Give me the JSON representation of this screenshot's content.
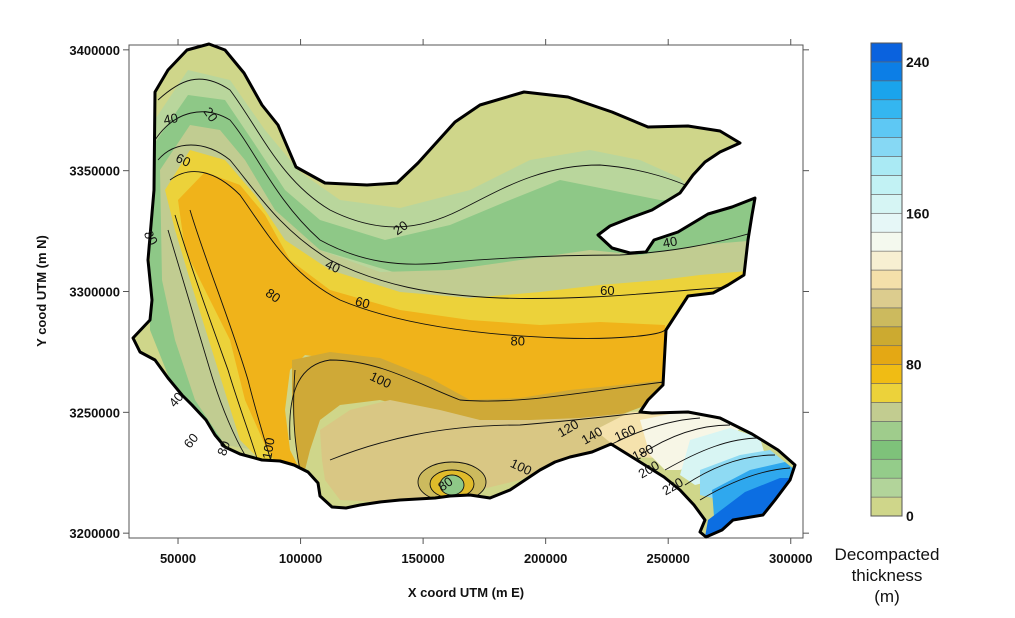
{
  "chart_data": {
    "type": "heatmap",
    "subtype": "filled-contour-map",
    "xlabel": "X coord UTM (m E)",
    "ylabel": "Y cood UTM (m N)",
    "xlim": [
      30000,
      305000
    ],
    "ylim": [
      3198000,
      3402000
    ],
    "x_ticks": [
      50000,
      100000,
      150000,
      200000,
      250000,
      300000
    ],
    "x_tick_labels": [
      "50000",
      "100000",
      "150000",
      "200000",
      "250000",
      "300000"
    ],
    "y_ticks": [
      3200000,
      3250000,
      3300000,
      3350000,
      3400000
    ],
    "y_tick_labels": [
      "3200000",
      "3250000",
      "3300000",
      "3350000",
      "3400000"
    ],
    "grid": false,
    "colorbar": {
      "title_lines": [
        "Decompacted",
        "thickness",
        "(m)"
      ],
      "min": 0,
      "max": 250,
      "step": 10,
      "tick_values": [
        0,
        80,
        160,
        240
      ],
      "tick_labels": [
        "0",
        "80",
        "160",
        "240"
      ],
      "colors": [
        "#cfd68a",
        "#b2d49a",
        "#94cc8a",
        "#7ec27a",
        "#9fcc8c",
        "#c2cc90",
        "#ecd23a",
        "#f0bc14",
        "#e4a814",
        "#ccaa30",
        "#ccba5e",
        "#dccc8e",
        "#f4e0aa",
        "#f7efd2",
        "#f4f9ee",
        "#e6f7f7",
        "#d6f5f4",
        "#c2f2f4",
        "#aaeaf4",
        "#86d8f4",
        "#5ec8f4",
        "#34b6f0",
        "#1aa4ec",
        "#0c7ee6",
        "#0a62de"
      ]
    },
    "contour_labels": [
      {
        "text": "20",
        "x": 57000,
        "y": 3373000,
        "rotate": 55
      },
      {
        "text": "40",
        "x": 44000,
        "y": 3371000,
        "rotate": -10
      },
      {
        "text": "60",
        "x": 48000,
        "y": 3354000,
        "rotate": 25
      },
      {
        "text": "80",
        "x": 37000,
        "y": 3322000,
        "rotate": 60
      },
      {
        "text": "20",
        "x": 121000,
        "y": 3326000,
        "rotate": -35
      },
      {
        "text": "40",
        "x": 98000,
        "y": 3310000,
        "rotate": 25
      },
      {
        "text": "40",
        "x": 211000,
        "y": 3320000,
        "rotate": -10
      },
      {
        "text": "60",
        "x": 108000,
        "y": 3295000,
        "rotate": 15
      },
      {
        "text": "60",
        "x": 190000,
        "y": 3300000,
        "rotate": 0
      },
      {
        "text": "80",
        "x": 78000,
        "y": 3298000,
        "rotate": 35
      },
      {
        "text": "80",
        "x": 160000,
        "y": 3279000,
        "rotate": 0
      },
      {
        "text": "100",
        "x": 114000,
        "y": 3263000,
        "rotate": 25
      },
      {
        "text": "40",
        "x": 46000,
        "y": 3255000,
        "rotate": -50
      },
      {
        "text": "60",
        "x": 51000,
        "y": 3238000,
        "rotate": -50
      },
      {
        "text": "80",
        "x": 62000,
        "y": 3235000,
        "rotate": -70
      },
      {
        "text": "100",
        "x": 77000,
        "y": 3235000,
        "rotate": -80
      },
      {
        "text": "100",
        "x": 161000,
        "y": 3227000,
        "rotate": 25
      },
      {
        "text": "80",
        "x": 136000,
        "y": 3220000,
        "rotate": -35
      },
      {
        "text": "120",
        "x": 177000,
        "y": 3243000,
        "rotate": -30
      },
      {
        "text": "140",
        "x": 185000,
        "y": 3240000,
        "rotate": -30
      },
      {
        "text": "160",
        "x": 196000,
        "y": 3241000,
        "rotate": -25
      },
      {
        "text": "180",
        "x": 202000,
        "y": 3233000,
        "rotate": -25
      },
      {
        "text": "200",
        "x": 204000,
        "y": 3226000,
        "rotate": -30
      },
      {
        "text": "220",
        "x": 212000,
        "y": 3219000,
        "rotate": -30
      }
    ]
  }
}
